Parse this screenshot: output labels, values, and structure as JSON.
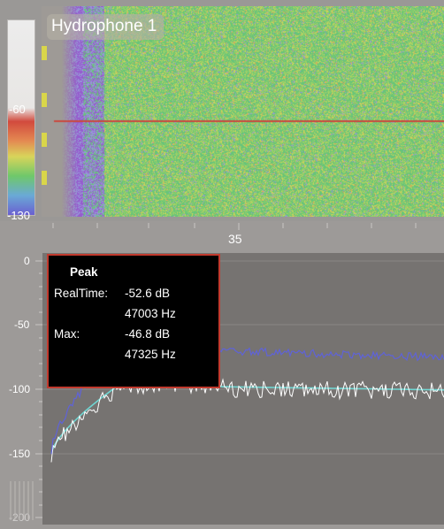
{
  "hydrophone_title": "Hydrophone 1",
  "colorbar": {
    "max_label": "-60",
    "min_label": "-130"
  },
  "x_axis": {
    "tick_label": "35"
  },
  "y_axis": {
    "labels": [
      "0",
      "-50",
      "-100",
      "-150",
      "-200"
    ]
  },
  "peak_box": {
    "heading": "Peak",
    "realtime_label": "RealTime:",
    "realtime_db": "-52.6 dB",
    "realtime_hz": "47003 Hz",
    "max_label": "Max:",
    "max_db": "-46.8 dB",
    "max_hz": "47325 Hz"
  },
  "colors": {
    "background": "#9d9a98",
    "plot_background": "#767371",
    "realtime_trace": "#5f63d8",
    "max_trace": "#ffffff",
    "average_trace": "#6fd6d2",
    "peak_border": "#c23a2e",
    "marker": "#d9d64a"
  }
}
